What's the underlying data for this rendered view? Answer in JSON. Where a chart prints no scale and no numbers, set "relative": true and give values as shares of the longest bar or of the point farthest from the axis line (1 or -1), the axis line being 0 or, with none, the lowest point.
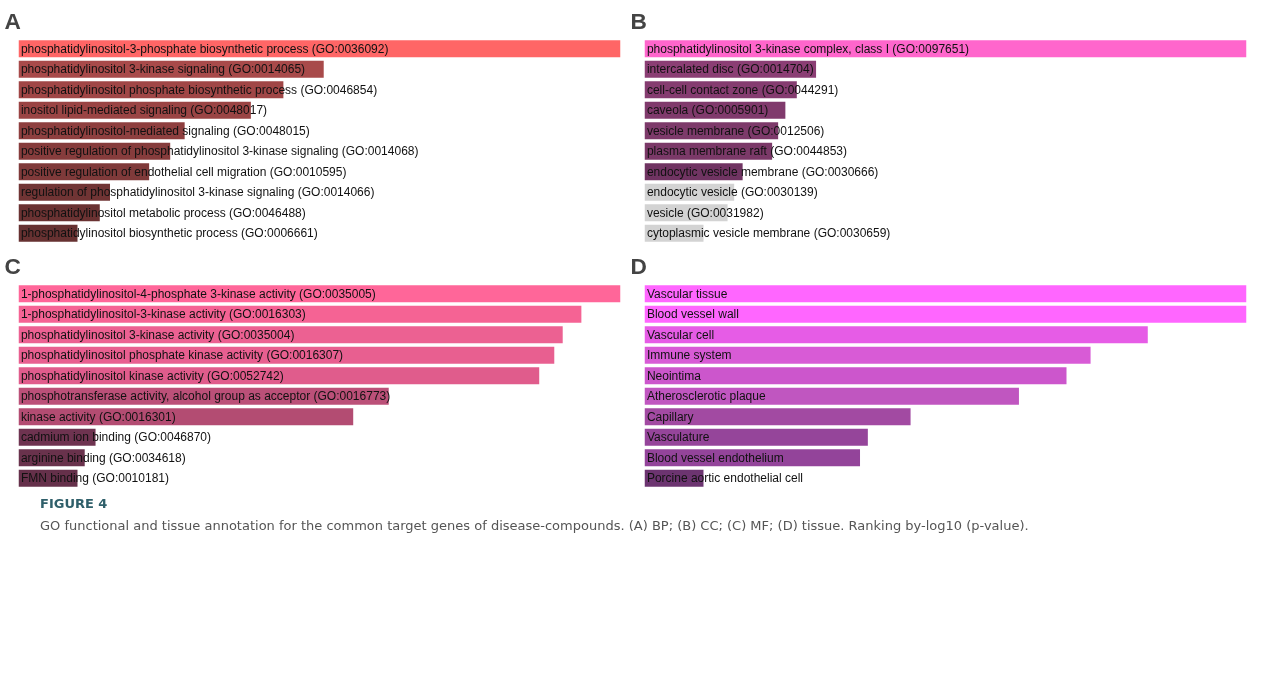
{
  "chart_data": [
    {
      "type": "bar",
      "title": "A",
      "orientation": "horizontal",
      "relative": true,
      "data_labels": false,
      "categories": [
        "phosphatidylinositol-3-phosphate biosynthetic process (GO:0036092)",
        "phosphatidylinositol 3-kinase signaling (GO:0014065)",
        "phosphatidylinositol phosphate biosynthetic process (GO:0046854)",
        "inositol lipid-mediated signaling (GO:0048017)",
        "phosphatidylinositol-mediated signaling (GO:0048015)",
        "positive regulation of phosphatidylinositol 3-kinase signaling (GO:0014068)",
        "positive regulation of endothelial cell migration (GO:0010595)",
        "regulation of phosphatidylinositol 3-kinase signaling (GO:0014066)",
        "phosphatidylinositol metabolic process (GO:0046488)",
        "phosphatidylinositol biosynthetic process (GO:0006661)"
      ],
      "values": [
        1,
        0.507,
        0.44,
        0.386,
        0.276,
        0.252,
        0.217,
        0.152,
        0.135,
        0.098
      ],
      "colors": [
        "#ff6666",
        "#a84a4a",
        "#a04646",
        "#9a4444",
        "#8e3f3f",
        "#863c3c",
        "#7f3a3a",
        "#703434",
        "#6a3232",
        "#663131"
      ]
    },
    {
      "type": "bar",
      "title": "B",
      "orientation": "horizontal",
      "relative": true,
      "categories": [
        "phosphatidylinositol 3-kinase complex, class I (GO:0097651)",
        "intercalated disc (GO:0014704)",
        "cell-cell contact zone (GO:0044291)",
        "caveola (GO:0005901)",
        "vesicle membrane (GO:0012506)",
        "plasma membrane raft (GO:0044853)",
        "endocytic vesicle membrane (GO:0030666)",
        "endocytic vesicle (GO:0030139)",
        "vesicle (GO:0031982)",
        "cytoplasmic vesicle membrane (GO:0030659)"
      ],
      "values": [
        1,
        0.285,
        0.253,
        0.234,
        0.222,
        0.212,
        0.163,
        0.149,
        0.138,
        0.098
      ],
      "colors": [
        "#ff66cc",
        "#8b3e74",
        "#853c70",
        "#803a6c",
        "#7d3a6a",
        "#7b3968",
        "#703462",
        "#d3d3d3",
        "#d3d3d3",
        "#d3d3d3"
      ]
    },
    {
      "type": "bar",
      "title": "C",
      "orientation": "horizontal",
      "relative": true,
      "categories": [
        "1-phosphatidylinositol-4-phosphate 3-kinase activity (GO:0035005)",
        "1-phosphatidylinositol-3-kinase activity (GO:0016303)",
        "phosphatidylinositol 3-kinase activity (GO:0035004)",
        "phosphatidylinositol phosphate kinase activity (GO:0016307)",
        "phosphatidylinositol kinase activity (GO:0052742)",
        "phosphotransferase activity, alcohol group as acceptor (GO:0016773)",
        "kinase activity (GO:0016301)",
        "cadmium ion binding (GO:0046870)",
        "arginine binding (GO:0034618)",
        "FMN binding (GO:0010181)"
      ],
      "values": [
        1,
        0.935,
        0.904,
        0.89,
        0.865,
        0.615,
        0.556,
        0.128,
        0.11,
        0.098
      ],
      "colors": [
        "#ff6699",
        "#f56394",
        "#ec6192",
        "#e85f90",
        "#e05c8c",
        "#bb5078",
        "#b34c72",
        "#6e3350",
        "#69324c",
        "#65304a"
      ]
    },
    {
      "type": "bar",
      "title": "D",
      "orientation": "horizontal",
      "relative": true,
      "categories": [
        "Vascular tissue",
        "Blood vessel wall",
        "Vascular cell",
        "Immune system",
        "Neointima",
        "Atherosclerotic plaque",
        "Capillary",
        "Vasculature",
        "Blood vessel endothelium",
        "Porcine aortic endothelial cell"
      ],
      "values": [
        1,
        1,
        0.836,
        0.741,
        0.701,
        0.622,
        0.442,
        0.371,
        0.358,
        0.098
      ],
      "colors": [
        "#ff66ff",
        "#ff66ff",
        "#e65ce6",
        "#d85bd6",
        "#cc56cc",
        "#c056c0",
        "#a24aa2",
        "#95459a",
        "#93449a",
        "#6c3470"
      ],
      "annotations": [
        "FIGURE 4",
        "GO functional and tissue annotation for the common target genes of disease-compounds. (A) BP; (B) CC; (C) MF; (D) tissue. Ranking by-log10 (p-value)."
      ]
    }
  ]
}
